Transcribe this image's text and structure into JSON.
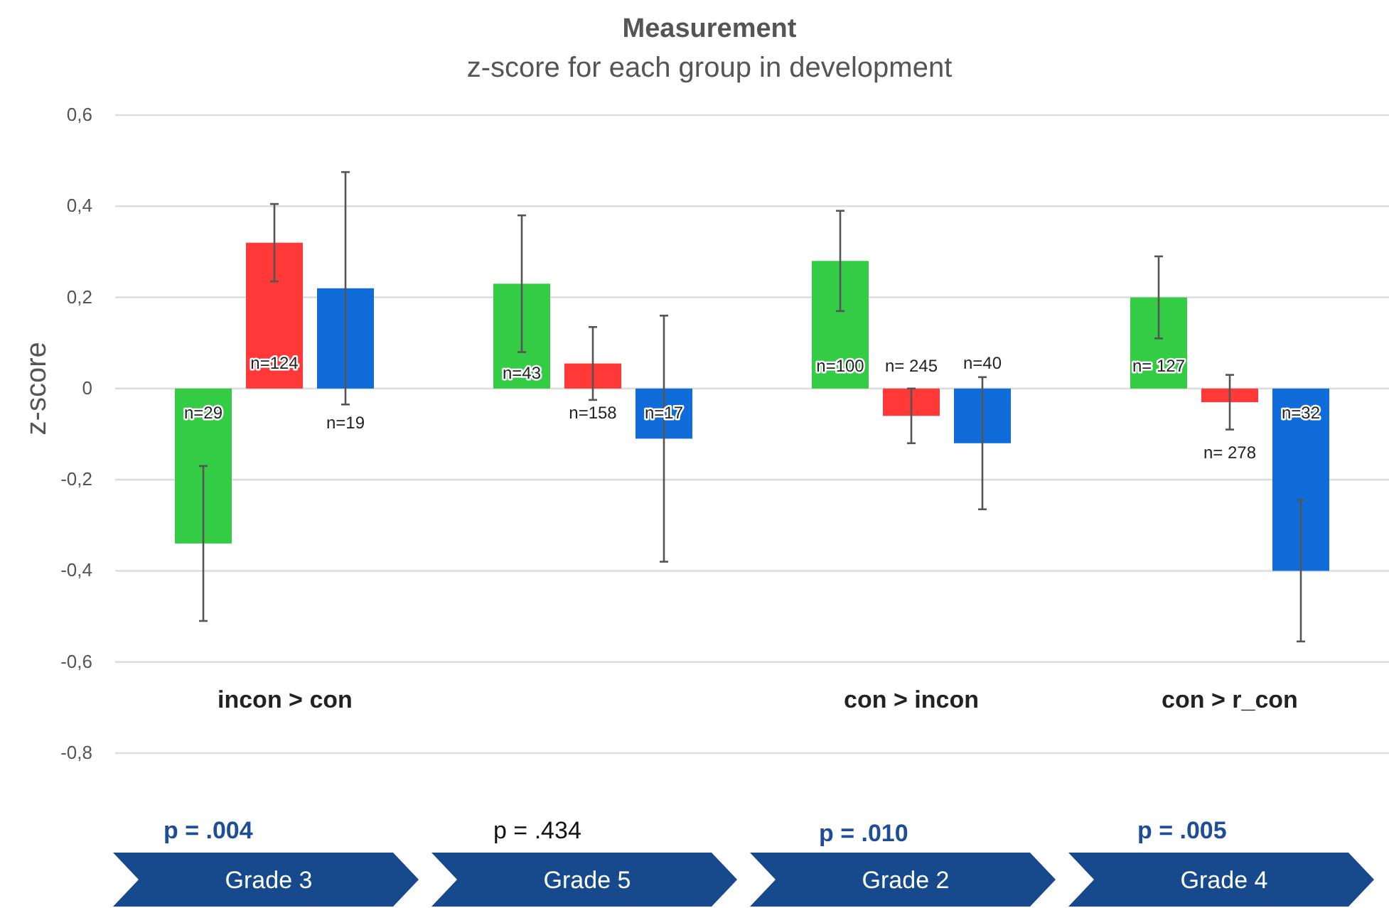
{
  "chart_data": {
    "type": "bar",
    "title": "Measurement",
    "subtitle": "z-score for each group in development",
    "ylabel": "z-score",
    "categories": [
      "Grade 3",
      "Grade 5",
      "Grade 2",
      "Grade 4"
    ],
    "series": [
      {
        "color": "#33cc44",
        "values": [
          -0.34,
          0.23,
          0.28,
          0.2
        ],
        "errors": [
          0.17,
          0.15,
          0.11,
          0.09
        ]
      },
      {
        "color": "#ff3838",
        "values": [
          0.32,
          0.055,
          -0.06,
          -0.03
        ],
        "errors": [
          0.085,
          0.08,
          0.06,
          0.06
        ]
      },
      {
        "color": "#0f6cd9",
        "values": [
          0.22,
          -0.11,
          -0.12,
          -0.4
        ],
        "errors": [
          0.255,
          0.27,
          0.145,
          0.155
        ]
      }
    ],
    "ylim": [
      -0.8,
      0.6
    ],
    "yticks": [
      {
        "value": -0.8,
        "label": "-0,8"
      },
      {
        "value": -0.6,
        "label": "-0,6"
      },
      {
        "value": -0.4,
        "label": "-0,4"
      },
      {
        "value": -0.2,
        "label": "-0,2"
      },
      0,
      {
        "value": 0.2,
        "label": "0,2"
      },
      {
        "value": 0.4,
        "label": "0,4"
      },
      {
        "value": 0.6,
        "label": "0,6"
      }
    ],
    "grid": "y",
    "annotations": [
      "incon > con",
      "con > incon",
      "con > r_con",
      "p = .004",
      "p = .434",
      "p = .010",
      "p = .005",
      "n=29",
      "n=124",
      "n=19",
      "n=43",
      "n=158",
      "n=17",
      "n=100",
      "n= 245",
      "n=40",
      "n= 127",
      "n= 278",
      "n=32"
    ]
  }
}
